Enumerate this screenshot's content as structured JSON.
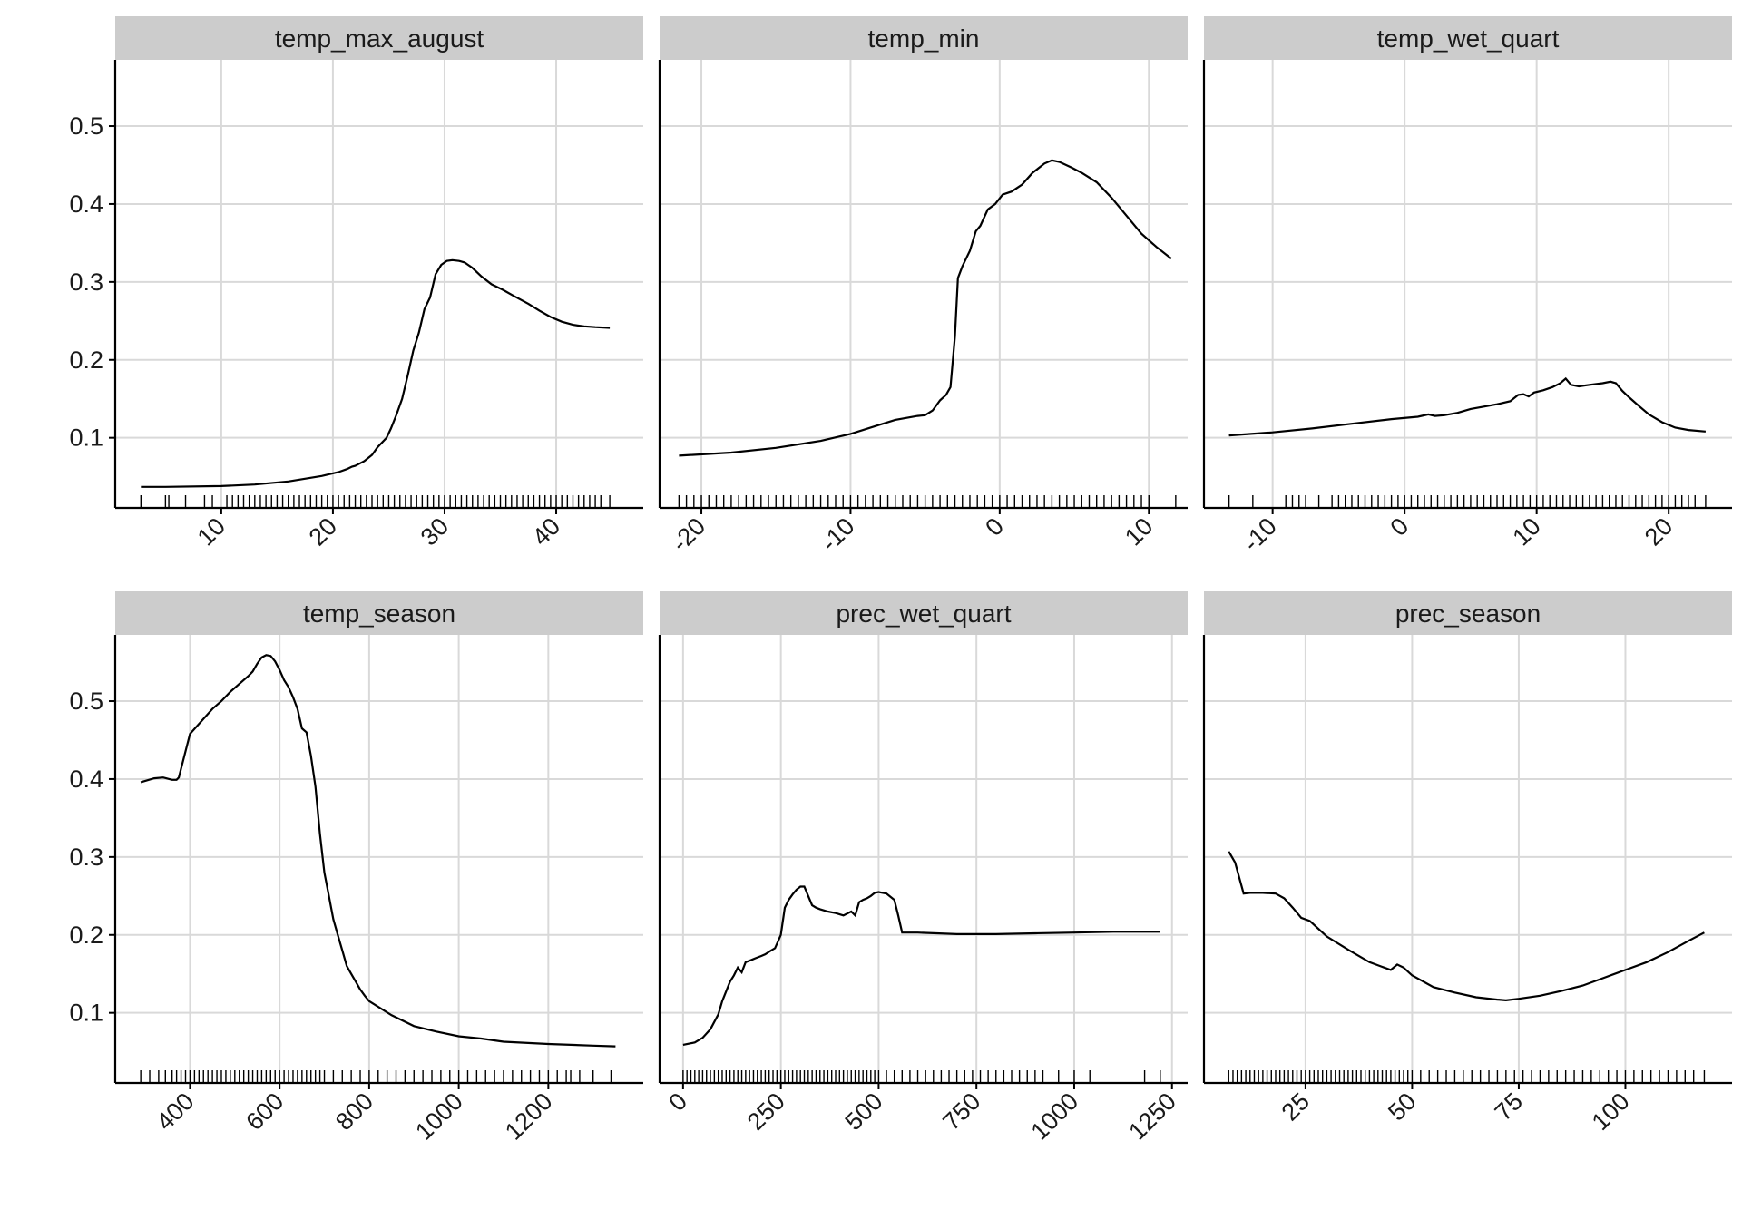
{
  "colors": {
    "strip_fill": "#cccccc",
    "grid": "#d9d9d9",
    "line": "#000000",
    "axis": "#000000",
    "text": "#1a1a1a",
    "background": "#ffffff"
  },
  "chart_data": [
    {
      "type": "line",
      "title": "temp_max_august",
      "xlabel": "",
      "ylabel": "",
      "xlim": [
        0.5,
        47.8
      ],
      "ylim": [
        0.01,
        0.585
      ],
      "xticks": [
        "10",
        "20",
        "30",
        "40"
      ],
      "yticks": [
        "0.1",
        "0.2",
        "0.3",
        "0.4",
        "0.5"
      ],
      "grid": true,
      "legend": "none",
      "x": [
        2.8,
        5,
        10,
        13,
        16,
        19,
        20.5,
        21.3,
        21.7,
        22,
        22.8,
        23.5,
        24,
        24.8,
        25.2,
        25.7,
        26.2,
        26.7,
        27.2,
        27.7,
        28.2,
        28.7,
        29.2,
        29.7,
        30.2,
        30.7,
        31.3,
        31.8,
        32.5,
        33.3,
        34.2,
        35.2,
        36.2,
        37.5,
        38.5,
        39.5,
        40.5,
        41.5,
        42.5,
        43.5,
        44.8
      ],
      "y": [
        0.037,
        0.037,
        0.038,
        0.04,
        0.044,
        0.051,
        0.056,
        0.06,
        0.063,
        0.064,
        0.07,
        0.078,
        0.088,
        0.1,
        0.112,
        0.13,
        0.15,
        0.18,
        0.212,
        0.235,
        0.265,
        0.28,
        0.31,
        0.322,
        0.327,
        0.328,
        0.327,
        0.325,
        0.318,
        0.307,
        0.297,
        0.29,
        0.282,
        0.272,
        0.263,
        0.255,
        0.249,
        0.245,
        0.243,
        0.242,
        0.241
      ],
      "rug": [
        2.8,
        5,
        5.3,
        6.8,
        8.5,
        9.2,
        10.5,
        11,
        11.5,
        12,
        12.5,
        13,
        13.5,
        14,
        14.5,
        15,
        15.5,
        16,
        16.5,
        17,
        17.5,
        18,
        18.5,
        19,
        19.5,
        20,
        20.5,
        21,
        21.5,
        22,
        22.5,
        23,
        23.5,
        24,
        24.5,
        25,
        25.5,
        26,
        26.5,
        27,
        27.5,
        28,
        28.5,
        29,
        29.5,
        30,
        30.5,
        31,
        31.5,
        32,
        32.5,
        33,
        33.5,
        34,
        34.5,
        35,
        35.5,
        36,
        36.5,
        37,
        37.5,
        38,
        38.5,
        39,
        39.5,
        40,
        40.5,
        41,
        41.5,
        42,
        42.5,
        43,
        43.5,
        44,
        44.8
      ]
    },
    {
      "type": "line",
      "title": "temp_min",
      "xlabel": "",
      "ylabel": "",
      "xlim": [
        -22.8,
        12.6
      ],
      "ylim": [
        0.01,
        0.585
      ],
      "xticks": [
        "-20",
        "-10",
        "0",
        "10"
      ],
      "yticks": [
        "0.1",
        "0.2",
        "0.3",
        "0.4",
        "0.5"
      ],
      "grid": true,
      "legend": "none",
      "x": [
        -21.5,
        -18,
        -15,
        -12,
        -10,
        -8,
        -7,
        -5.5,
        -5,
        -4.5,
        -4,
        -3.6,
        -3.3,
        -3,
        -2.8,
        -2.5,
        -2,
        -1.6,
        -1.3,
        -0.8,
        -0.3,
        0.2,
        0.8,
        1.5,
        2.2,
        3,
        3.5,
        4,
        4.8,
        5.5,
        6.5,
        7.5,
        8.5,
        9.5,
        10.5,
        11.5
      ],
      "y": [
        0.077,
        0.081,
        0.087,
        0.096,
        0.105,
        0.117,
        0.123,
        0.128,
        0.129,
        0.135,
        0.148,
        0.155,
        0.165,
        0.23,
        0.305,
        0.32,
        0.34,
        0.365,
        0.372,
        0.393,
        0.4,
        0.412,
        0.416,
        0.425,
        0.44,
        0.452,
        0.456,
        0.454,
        0.447,
        0.44,
        0.428,
        0.408,
        0.385,
        0.362,
        0.345,
        0.33
      ],
      "rug": [
        -21.5,
        -21,
        -20.5,
        -20,
        -19.5,
        -19,
        -18.5,
        -18,
        -17.5,
        -17,
        -16.5,
        -16,
        -15.5,
        -15,
        -14.5,
        -14,
        -13.5,
        -13,
        -12.5,
        -12,
        -11.5,
        -11,
        -10.5,
        -10,
        -9.5,
        -9,
        -8.5,
        -8,
        -7.5,
        -7,
        -6.5,
        -6,
        -5.5,
        -5,
        -4.5,
        -4,
        -3.5,
        -3,
        -2.5,
        -2,
        -1.5,
        -1,
        -0.5,
        0,
        0.5,
        1,
        1.5,
        2,
        2.5,
        3,
        3.5,
        4,
        4.5,
        5,
        5.5,
        6,
        6.5,
        7,
        7.5,
        8,
        8.5,
        9,
        9.5,
        10,
        11.8
      ]
    },
    {
      "type": "line",
      "title": "temp_wet_quart",
      "xlabel": "",
      "ylabel": "",
      "xlim": [
        -15.2,
        24.8
      ],
      "ylim": [
        0.01,
        0.585
      ],
      "xticks": [
        "-10",
        "0",
        "10",
        "20"
      ],
      "yticks": [
        "0.1",
        "0.2",
        "0.3",
        "0.4",
        "0.5"
      ],
      "grid": true,
      "legend": "none",
      "x": [
        -13.3,
        -10,
        -7,
        -4,
        -1,
        1,
        1.8,
        2.3,
        3,
        4,
        5,
        6,
        7,
        8,
        8.6,
        9,
        9.4,
        9.8,
        10.5,
        11.2,
        11.8,
        12.2,
        12.6,
        13.2,
        14,
        15,
        15.6,
        16,
        16.5,
        17,
        17.8,
        18.5,
        19.5,
        20.5,
        21.5,
        22.8
      ],
      "y": [
        0.103,
        0.107,
        0.112,
        0.118,
        0.124,
        0.127,
        0.13,
        0.128,
        0.129,
        0.132,
        0.137,
        0.14,
        0.143,
        0.147,
        0.155,
        0.156,
        0.153,
        0.158,
        0.161,
        0.165,
        0.17,
        0.176,
        0.168,
        0.166,
        0.168,
        0.17,
        0.172,
        0.17,
        0.16,
        0.152,
        0.14,
        0.13,
        0.12,
        0.113,
        0.11,
        0.108
      ],
      "rug": [
        -13.3,
        -11.5,
        -9,
        -8.5,
        -8,
        -7.5,
        -6.5,
        -5.5,
        -5,
        -4.5,
        -4,
        -3.5,
        -3,
        -2.5,
        -2,
        -1.5,
        -1,
        -0.5,
        0,
        0.5,
        1,
        1.5,
        2,
        2.5,
        3,
        3.5,
        4,
        4.5,
        5,
        5.5,
        6,
        6.5,
        7,
        7.5,
        8,
        8.5,
        9,
        9.5,
        10,
        10.5,
        11,
        11.5,
        12,
        12.5,
        13,
        13.5,
        14,
        14.5,
        15,
        15.5,
        16,
        16.5,
        17,
        17.5,
        18,
        18.5,
        19,
        19.5,
        20,
        20.5,
        21,
        21.5,
        22,
        22.8
      ]
    },
    {
      "type": "line",
      "title": "temp_season",
      "xlabel": "",
      "ylabel": "",
      "xlim": [
        233,
        1412
      ],
      "ylim": [
        0.01,
        0.585
      ],
      "xticks": [
        "400",
        "600",
        "800",
        "1000",
        "1200"
      ],
      "yticks": [
        "0.1",
        "0.2",
        "0.3",
        "0.4",
        "0.5"
      ],
      "grid": true,
      "legend": "none",
      "x": [
        290,
        320,
        340,
        360,
        370,
        375,
        400,
        450,
        470,
        490,
        510,
        530,
        540,
        550,
        560,
        570,
        580,
        590,
        600,
        610,
        620,
        630,
        640,
        650,
        660,
        670,
        680,
        690,
        700,
        710,
        720,
        730,
        740,
        750,
        760,
        770,
        780,
        790,
        800,
        850,
        900,
        950,
        1000,
        1050,
        1100,
        1200,
        1300,
        1350
      ],
      "y": [
        0.396,
        0.401,
        0.402,
        0.399,
        0.399,
        0.402,
        0.458,
        0.49,
        0.5,
        0.512,
        0.522,
        0.532,
        0.538,
        0.548,
        0.556,
        0.559,
        0.558,
        0.551,
        0.54,
        0.527,
        0.518,
        0.505,
        0.49,
        0.465,
        0.46,
        0.43,
        0.39,
        0.33,
        0.28,
        0.25,
        0.22,
        0.2,
        0.18,
        0.16,
        0.15,
        0.14,
        0.13,
        0.122,
        0.115,
        0.097,
        0.083,
        0.076,
        0.07,
        0.067,
        0.063,
        0.06,
        0.058,
        0.057
      ],
      "rug": [
        290,
        310,
        330,
        345,
        360,
        370,
        380,
        390,
        400,
        410,
        420,
        430,
        440,
        450,
        460,
        470,
        480,
        490,
        500,
        510,
        520,
        530,
        540,
        550,
        560,
        570,
        580,
        590,
        600,
        610,
        620,
        630,
        640,
        650,
        660,
        670,
        680,
        690,
        700,
        720,
        740,
        760,
        780,
        800,
        820,
        840,
        860,
        880,
        900,
        920,
        940,
        960,
        980,
        1000,
        1020,
        1040,
        1060,
        1080,
        1100,
        1120,
        1140,
        1160,
        1180,
        1200,
        1220,
        1240,
        1250,
        1270,
        1300,
        1340
      ]
    },
    {
      "type": "line",
      "title": "prec_wet_quart",
      "xlabel": "",
      "ylabel": "",
      "xlim": [
        -60,
        1290
      ],
      "ylim": [
        0.01,
        0.585
      ],
      "xticks": [
        "0",
        "250",
        "500",
        "750",
        "1000",
        "1250"
      ],
      "yticks": [
        "0.1",
        "0.2",
        "0.3",
        "0.4",
        "0.5"
      ],
      "grid": true,
      "legend": "none",
      "x": [
        0,
        30,
        50,
        70,
        90,
        100,
        120,
        130,
        140,
        150,
        160,
        175,
        185,
        200,
        210,
        225,
        235,
        250,
        260,
        270,
        280,
        290,
        300,
        310,
        320,
        330,
        340,
        350,
        370,
        390,
        410,
        430,
        440,
        450,
        460,
        470,
        480,
        490,
        500,
        520,
        540,
        550,
        560,
        600,
        700,
        800,
        900,
        1000,
        1100,
        1220
      ],
      "y": [
        0.059,
        0.062,
        0.068,
        0.079,
        0.098,
        0.115,
        0.14,
        0.148,
        0.158,
        0.152,
        0.165,
        0.168,
        0.17,
        0.173,
        0.175,
        0.18,
        0.183,
        0.2,
        0.235,
        0.245,
        0.252,
        0.258,
        0.262,
        0.262,
        0.25,
        0.238,
        0.235,
        0.233,
        0.23,
        0.228,
        0.225,
        0.23,
        0.225,
        0.242,
        0.245,
        0.247,
        0.25,
        0.254,
        0.255,
        0.253,
        0.245,
        0.225,
        0.203,
        0.203,
        0.201,
        0.201,
        0.202,
        0.203,
        0.204,
        0.204
      ],
      "rug": [
        0,
        10,
        20,
        30,
        40,
        50,
        60,
        70,
        80,
        90,
        100,
        110,
        120,
        130,
        140,
        150,
        160,
        170,
        180,
        190,
        200,
        210,
        220,
        230,
        240,
        250,
        260,
        270,
        280,
        290,
        300,
        310,
        320,
        330,
        340,
        350,
        360,
        370,
        380,
        390,
        400,
        410,
        420,
        430,
        440,
        450,
        460,
        470,
        480,
        490,
        500,
        520,
        540,
        560,
        580,
        600,
        620,
        640,
        660,
        680,
        700,
        720,
        740,
        760,
        780,
        800,
        820,
        840,
        860,
        880,
        900,
        920,
        960,
        1000,
        1040,
        1180,
        1220
      ]
    },
    {
      "type": "line",
      "title": "prec_season",
      "xlabel": "",
      "ylabel": "",
      "xlim": [
        1.2,
        125
      ],
      "ylim": [
        0.01,
        0.585
      ],
      "xticks": [
        "25",
        "50",
        "75",
        "100"
      ],
      "yticks": [
        "0.1",
        "0.2",
        "0.3",
        "0.4",
        "0.5"
      ],
      "grid": true,
      "legend": "none",
      "x": [
        7,
        8.5,
        10.5,
        12,
        15,
        18,
        20,
        22,
        24,
        26,
        28,
        30,
        35,
        40,
        43,
        45,
        46.5,
        48,
        50,
        55,
        60,
        65,
        70,
        72,
        75,
        80,
        85,
        90,
        95,
        100,
        105,
        110,
        115,
        118.5
      ],
      "y": [
        0.307,
        0.293,
        0.253,
        0.254,
        0.254,
        0.253,
        0.247,
        0.235,
        0.222,
        0.218,
        0.208,
        0.198,
        0.181,
        0.165,
        0.159,
        0.155,
        0.162,
        0.158,
        0.148,
        0.133,
        0.126,
        0.12,
        0.117,
        0.116,
        0.118,
        0.122,
        0.128,
        0.135,
        0.145,
        0.155,
        0.165,
        0.178,
        0.193,
        0.203
      ],
      "rug": [
        7,
        8,
        9,
        10,
        11,
        12,
        13,
        14,
        15,
        16,
        17,
        18,
        19,
        20,
        21,
        22,
        23,
        24,
        25,
        26,
        27,
        28,
        29,
        30,
        31,
        32,
        33,
        34,
        35,
        36,
        37,
        38,
        39,
        40,
        41,
        42,
        43,
        44,
        45,
        46,
        47,
        48,
        49,
        50,
        52,
        54,
        56,
        58,
        60,
        62,
        64,
        66,
        68,
        70,
        72,
        74,
        76,
        78,
        80,
        82,
        84,
        86,
        88,
        90,
        92,
        94,
        96,
        98,
        100,
        102,
        104,
        106,
        108,
        110,
        112,
        114,
        116,
        118.5
      ]
    }
  ]
}
